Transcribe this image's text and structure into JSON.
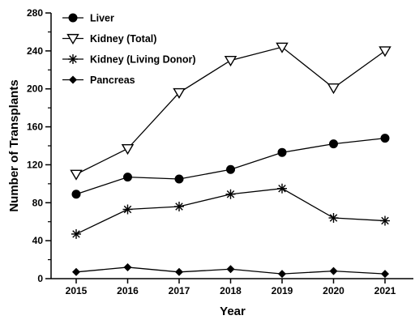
{
  "chart_data": {
    "type": "line",
    "xlabel": "Year",
    "ylabel": "Number of Transplants",
    "x": [
      "2015",
      "2016",
      "2017",
      "2018",
      "2019",
      "2020",
      "2021"
    ],
    "ylim": [
      0,
      280
    ],
    "yticks": [
      0,
      40,
      80,
      120,
      160,
      200,
      240,
      280
    ],
    "grid": false,
    "legend_position": "top-left",
    "series": [
      {
        "name": "Liver",
        "marker": "filled-circle",
        "values": [
          89,
          107,
          105,
          115,
          133,
          142,
          148
        ]
      },
      {
        "name": "Kidney (Total)",
        "marker": "open-triangle-down",
        "values": [
          110,
          137,
          196,
          230,
          244,
          201,
          240
        ]
      },
      {
        "name": "Kidney (Living Donor)",
        "marker": "asterisk",
        "values": [
          47,
          73,
          76,
          89,
          95,
          64,
          61
        ]
      },
      {
        "name": "Pancreas",
        "marker": "filled-diamond",
        "values": [
          7,
          12,
          7,
          10,
          5,
          8,
          5
        ]
      }
    ]
  }
}
